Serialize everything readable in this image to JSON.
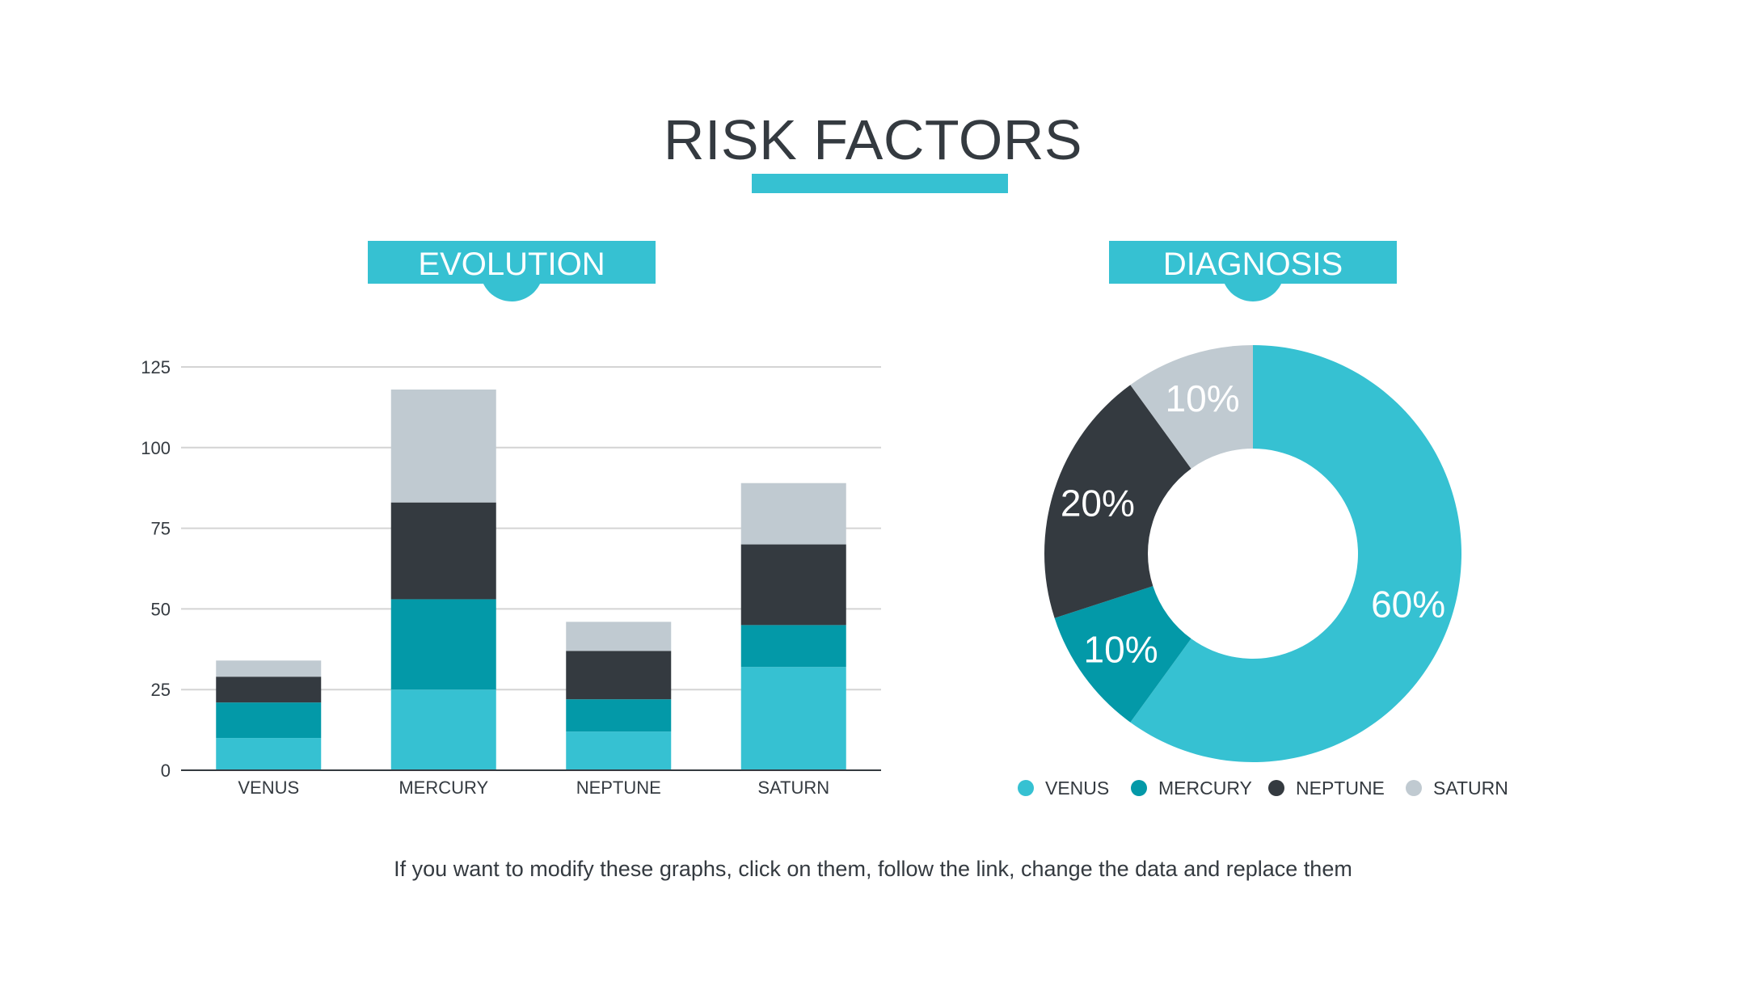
{
  "title": "RISK FACTORS",
  "colors": {
    "accent": "#36c1d2",
    "venus": "#36c1d2",
    "mercury": "#0399a8",
    "neptune": "#343a40",
    "saturn": "#c0cad1",
    "axis_text": "#343a40",
    "grid": "#d4d4d4"
  },
  "sections": {
    "evolution": {
      "label": "EVOLUTION"
    },
    "diagnosis": {
      "label": "DIAGNOSIS"
    }
  },
  "footnote": "If you want to modify these graphs, click on them, follow the link, change the data and replace them",
  "chart_data": [
    {
      "type": "bar",
      "stacked": true,
      "categories": [
        "VENUS",
        "MERCURY",
        "NEPTUNE",
        "SATURN"
      ],
      "series": [
        {
          "name": "VENUS",
          "color": "#36c1d2",
          "values": [
            10,
            25,
            12,
            32
          ]
        },
        {
          "name": "MERCURY",
          "color": "#0399a8",
          "values": [
            11,
            28,
            10,
            13
          ]
        },
        {
          "name": "NEPTUNE",
          "color": "#343a40",
          "values": [
            8,
            30,
            15,
            25
          ]
        },
        {
          "name": "SATURN",
          "color": "#c0cad1",
          "values": [
            5,
            35,
            9,
            19
          ]
        }
      ],
      "ylim": [
        0,
        125
      ],
      "yticks": [
        "0",
        "25",
        "50",
        "75",
        "100",
        "125"
      ],
      "grid": true,
      "legend": "none"
    },
    {
      "type": "pie",
      "donut": true,
      "labels": [
        "VENUS",
        "MERCURY",
        "NEPTUNE",
        "SATURN"
      ],
      "values": [
        60,
        10,
        20,
        10
      ],
      "value_labels": [
        "60%",
        "10%",
        "20%",
        "10%"
      ],
      "colors": [
        "#36c1d2",
        "#0399a8",
        "#343a40",
        "#c0cad1"
      ],
      "legend": "bottom"
    }
  ]
}
